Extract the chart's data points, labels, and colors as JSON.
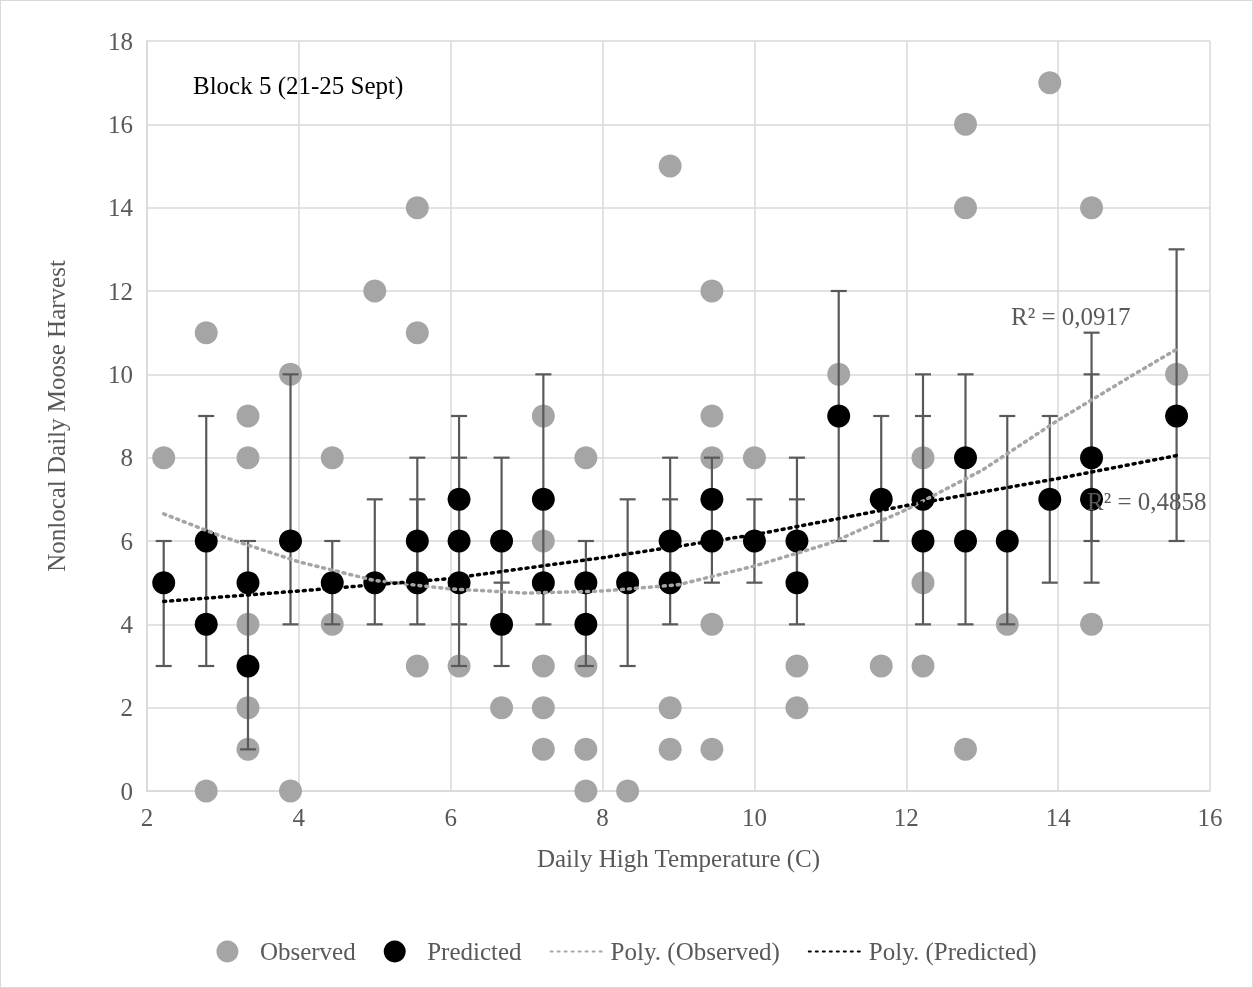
{
  "chart_data": {
    "type": "scatter",
    "xlabel": "Daily High Temperature (C)",
    "ylabel": "Nonlocal Daily Moose Harvest",
    "xlim": [
      2,
      16
    ],
    "xticks": [
      2,
      4,
      6,
      8,
      10,
      12,
      14,
      16
    ],
    "ylim": [
      0,
      18
    ],
    "yticks": [
      0,
      2,
      4,
      6,
      8,
      10,
      12,
      14,
      16,
      18
    ],
    "grid": true,
    "legend": "bottom",
    "marker": "circle",
    "annotations": [
      "Block 5 (21-25 Sept)",
      "R² = 0,0917",
      "R² = 0,4858"
    ],
    "series": [
      {
        "name": "Observed",
        "color": "#a5a5a5",
        "x": [
          2.22,
          2.78,
          2.78,
          3.33,
          3.33,
          3.33,
          3.33,
          3.33,
          3.89,
          3.89,
          4.44,
          4.44,
          5.0,
          5.56,
          5.56,
          5.56,
          6.11,
          6.67,
          7.22,
          7.22,
          7.22,
          7.22,
          7.22,
          7.78,
          7.78,
          7.78,
          7.78,
          8.33,
          8.89,
          8.89,
          8.89,
          9.44,
          9.44,
          9.44,
          9.44,
          9.44,
          10.0,
          10.56,
          10.56,
          11.11,
          11.67,
          12.22,
          12.22,
          12.22,
          12.78,
          12.78,
          12.78,
          13.33,
          13.89,
          14.44,
          14.44,
          15.56
        ],
        "values": [
          8,
          11,
          0,
          9,
          8,
          4,
          2,
          1,
          10,
          0,
          8,
          4,
          12,
          14,
          11,
          3,
          3,
          2,
          9,
          6,
          3,
          2,
          1,
          8,
          3,
          1,
          0,
          0,
          15,
          2,
          1,
          12,
          9,
          8,
          4,
          1,
          8,
          3,
          2,
          10,
          3,
          8,
          5,
          3,
          16,
          14,
          1,
          4,
          17,
          14,
          4,
          10
        ]
      },
      {
        "name": "Predicted",
        "color": "#000000",
        "x": [
          2.22,
          2.78,
          2.78,
          3.33,
          3.33,
          3.89,
          4.44,
          5.0,
          5.56,
          5.56,
          6.11,
          6.11,
          6.11,
          6.67,
          6.67,
          7.22,
          7.22,
          7.78,
          7.78,
          8.33,
          8.89,
          8.89,
          9.44,
          9.44,
          10.0,
          10.56,
          10.56,
          11.11,
          11.67,
          12.22,
          12.22,
          12.78,
          12.78,
          13.33,
          13.89,
          14.44,
          14.44,
          15.56
        ],
        "values": [
          5,
          6,
          4,
          5,
          3,
          6,
          5,
          5,
          6,
          5,
          7,
          6,
          5,
          6,
          4,
          7,
          5,
          5,
          4,
          5,
          6,
          5,
          7,
          6,
          6,
          6,
          5,
          9,
          7,
          7,
          6,
          8,
          6,
          6,
          7,
          8,
          7,
          9
        ],
        "errors": [
          [
            3,
            6
          ],
          [
            3,
            9
          ],
          null,
          [
            1,
            6
          ],
          null,
          [
            4,
            10
          ],
          [
            4,
            6
          ],
          [
            4,
            7
          ],
          [
            4,
            8
          ],
          [
            5,
            7
          ],
          [
            3,
            9
          ],
          [
            6,
            8
          ],
          [
            4,
            5
          ],
          [
            3,
            8
          ],
          [
            4,
            5
          ],
          [
            4,
            10
          ],
          null,
          [
            3,
            6
          ],
          null,
          [
            3,
            7
          ],
          [
            4,
            8
          ],
          [
            5,
            7
          ],
          [
            5,
            8
          ],
          null,
          [
            5,
            7
          ],
          [
            4,
            8
          ],
          [
            5,
            7
          ],
          [
            6,
            12
          ],
          [
            6,
            9
          ],
          [
            4,
            10
          ],
          [
            6,
            9
          ],
          [
            4,
            10
          ],
          null,
          [
            4,
            9
          ],
          [
            5,
            9
          ],
          [
            5,
            11
          ],
          [
            6,
            10
          ],
          [
            6,
            13
          ]
        ]
      },
      {
        "name": "Poly. (Observed)",
        "type": "line",
        "marker": "none",
        "line_style": "dotted",
        "color": "#a5a5a5",
        "x": [
          2.22,
          3,
          4,
          5,
          6,
          7,
          8,
          9,
          10,
          11,
          12,
          13,
          14,
          15,
          15.56
        ],
        "values": [
          6.65,
          6.1,
          5.5,
          5.05,
          4.85,
          4.75,
          4.8,
          4.95,
          5.4,
          5.95,
          6.75,
          7.7,
          8.9,
          10.0,
          10.6
        ]
      },
      {
        "name": "Poly. (Predicted)",
        "type": "line",
        "marker": "none",
        "line_style": "dotted",
        "color": "#000000",
        "x": [
          2.22,
          4,
          6,
          8,
          10,
          12,
          14,
          15.56
        ],
        "values": [
          4.55,
          4.8,
          5.1,
          5.6,
          6.15,
          6.85,
          7.5,
          8.05
        ]
      }
    ]
  }
}
